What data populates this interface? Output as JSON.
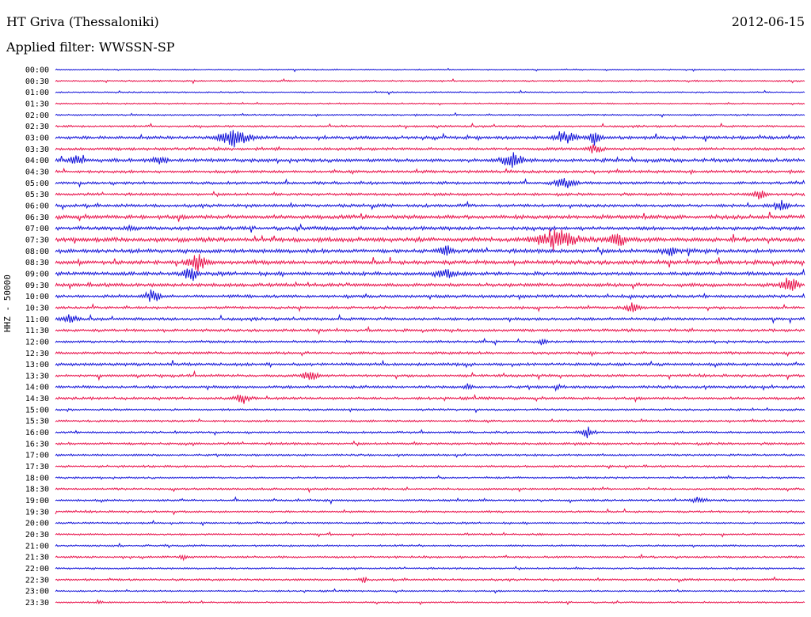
{
  "header": {
    "station": "HT Griva (Thessaloniki)",
    "date": "2012-06-15",
    "filter": "Applied filter: WWSSN-SP"
  },
  "colors": {
    "odd_trace": "#1010d8",
    "even_trace": "#e8104a",
    "background": "#ffffff"
  },
  "chart_data": {
    "type": "line",
    "title": "HT Griva (Thessaloniki)",
    "ylabel": "HHZ - 50000",
    "ylim_labels_order": "top-to-bottom",
    "categories": [
      "00:00",
      "00:30",
      "01:00",
      "01:30",
      "02:00",
      "02:30",
      "03:00",
      "03:30",
      "04:00",
      "04:30",
      "05:00",
      "05:30",
      "06:00",
      "06:30",
      "07:00",
      "07:30",
      "08:00",
      "08:30",
      "09:00",
      "09:30",
      "10:00",
      "10:30",
      "11:00",
      "11:30",
      "12:00",
      "12:30",
      "13:00",
      "13:30",
      "14:00",
      "14:30",
      "15:00",
      "15:30",
      "16:00",
      "16:30",
      "17:00",
      "17:30",
      "18:00",
      "18:30",
      "19:00",
      "19:30",
      "20:00",
      "20:30",
      "21:00",
      "21:30",
      "22:00",
      "22:30",
      "23:00",
      "23:30"
    ],
    "noise": [
      0.6,
      0.8,
      0.7,
      0.7,
      0.8,
      1.0,
      1.6,
      1.4,
      1.8,
      1.4,
      1.4,
      1.3,
      1.5,
      2.0,
      1.8,
      2.2,
      2.0,
      2.0,
      1.8,
      1.8,
      1.5,
      1.3,
      1.4,
      1.3,
      1.2,
      1.3,
      1.4,
      1.3,
      1.4,
      1.3,
      1.0,
      1.0,
      1.0,
      1.2,
      1.0,
      1.0,
      1.0,
      1.0,
      1.0,
      1.0,
      0.9,
      0.9,
      0.9,
      1.0,
      0.9,
      1.0,
      0.8,
      0.8
    ],
    "events": [
      [],
      [],
      [],
      [],
      [],
      [],
      [
        {
          "t": 0.24,
          "a": 12,
          "w": 0.04
        },
        {
          "t": 0.68,
          "a": 7,
          "w": 0.03
        },
        {
          "t": 0.72,
          "a": 8,
          "w": 0.02
        }
      ],
      [
        {
          "t": 0.72,
          "a": 5,
          "w": 0.02
        }
      ],
      [
        {
          "t": 0.03,
          "a": 8,
          "w": 0.02
        },
        {
          "t": 0.14,
          "a": 4,
          "w": 0.02
        },
        {
          "t": 0.61,
          "a": 9,
          "w": 0.03
        }
      ],
      [],
      [
        {
          "t": 0.68,
          "a": 6,
          "w": 0.03
        }
      ],
      [
        {
          "t": 0.94,
          "a": 5,
          "w": 0.02
        }
      ],
      [
        {
          "t": 0.97,
          "a": 5,
          "w": 0.02
        }
      ],
      [],
      [
        {
          "t": 0.1,
          "a": 4,
          "w": 0.01
        }
      ],
      [
        {
          "t": 0.67,
          "a": 11,
          "w": 0.06
        },
        {
          "t": 0.75,
          "a": 7,
          "w": 0.03
        }
      ],
      [
        {
          "t": 0.52,
          "a": 5,
          "w": 0.02
        },
        {
          "t": 0.82,
          "a": 5,
          "w": 0.02
        }
      ],
      [
        {
          "t": 0.19,
          "a": 9,
          "w": 0.03
        }
      ],
      [
        {
          "t": 0.18,
          "a": 9,
          "w": 0.02
        },
        {
          "t": 0.52,
          "a": 6,
          "w": 0.03
        }
      ],
      [
        {
          "t": 0.98,
          "a": 10,
          "w": 0.02
        }
      ],
      [
        {
          "t": 0.13,
          "a": 7,
          "w": 0.02
        }
      ],
      [
        {
          "t": 0.77,
          "a": 6,
          "w": 0.02
        }
      ],
      [
        {
          "t": 0.02,
          "a": 6,
          "w": 0.02
        }
      ],
      [],
      [
        {
          "t": 0.65,
          "a": 4,
          "w": 0.01
        }
      ],
      [],
      [],
      [
        {
          "t": 0.34,
          "a": 7,
          "w": 0.02
        }
      ],
      [
        {
          "t": 0.55,
          "a": 3,
          "w": 0.01
        },
        {
          "t": 0.67,
          "a": 3,
          "w": 0.01
        }
      ],
      [
        {
          "t": 0.25,
          "a": 6,
          "w": 0.02
        }
      ],
      [],
      [],
      [
        {
          "t": 0.71,
          "a": 6,
          "w": 0.02
        }
      ],
      [],
      [],
      [],
      [],
      [],
      [
        {
          "t": 0.86,
          "a": 4,
          "w": 0.02
        }
      ],
      [],
      [],
      [],
      [],
      [
        {
          "t": 0.17,
          "a": 3,
          "w": 0.01
        }
      ],
      [],
      [
        {
          "t": 0.41,
          "a": 4,
          "w": 0.01
        }
      ],
      [],
      [
        {
          "t": 0.06,
          "a": 3,
          "w": 0.01
        }
      ]
    ]
  }
}
